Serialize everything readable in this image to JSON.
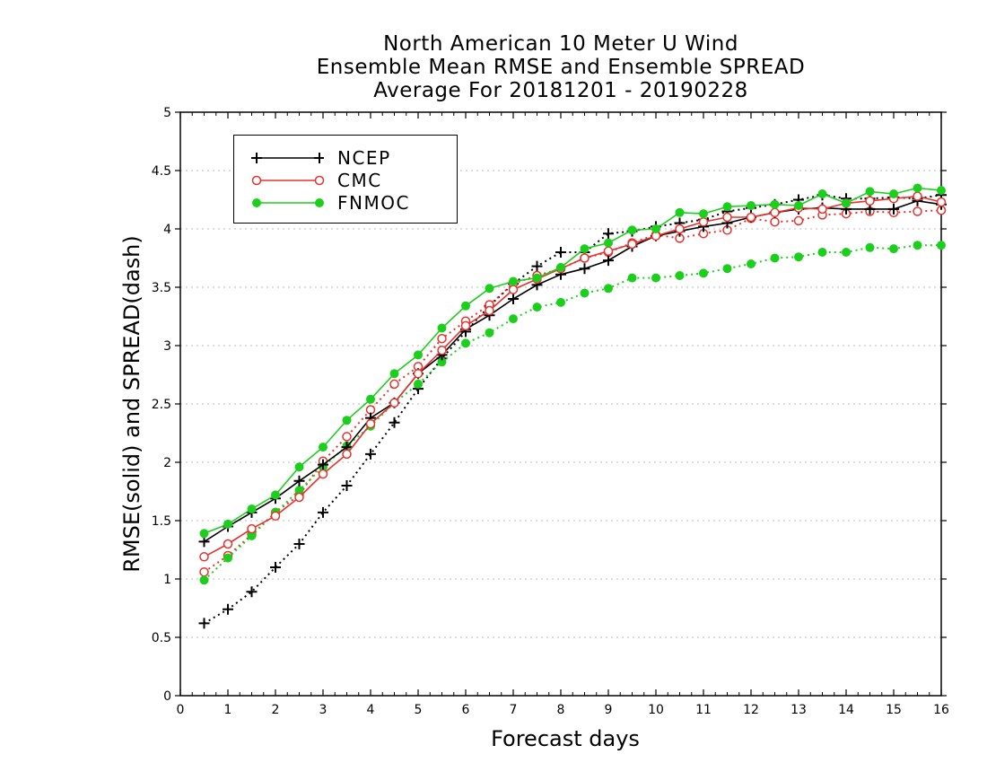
{
  "chart_data": {
    "type": "line",
    "title": [
      "North American 10 Meter U Wind",
      "Ensemble Mean RMSE and Ensemble SPREAD",
      "Average For 20181201 - 20190228"
    ],
    "xlabel": "Forecast days",
    "ylabel": "RMSE(solid) and SPREAD(dash)",
    "xlim": [
      0,
      16
    ],
    "ylim": [
      0,
      5
    ],
    "xticks": [
      "0",
      "1",
      "2",
      "3",
      "4",
      "5",
      "6",
      "7",
      "8",
      "9",
      "10",
      "11",
      "12",
      "13",
      "14",
      "15",
      "16"
    ],
    "yticks": [
      "0",
      "0.5",
      "1",
      "1.5",
      "2",
      "2.5",
      "3",
      "3.5",
      "4",
      "4.5",
      "5"
    ],
    "grid": "horizontal dotted",
    "legend_position": "top-left",
    "x": [
      0.5,
      1,
      1.5,
      2,
      2.5,
      3,
      3.5,
      4,
      4.5,
      5,
      5.5,
      6,
      6.5,
      7,
      7.5,
      8,
      8.5,
      9,
      9.5,
      10,
      10.5,
      11,
      11.5,
      12,
      12.5,
      13,
      13.5,
      14,
      14.5,
      15,
      15.5,
      16
    ],
    "series": [
      {
        "name": "NCEP",
        "metric": "RMSE",
        "style": "solid",
        "marker": "plus",
        "color": "#000000",
        "values": [
          1.32,
          1.45,
          1.57,
          1.69,
          1.84,
          1.98,
          2.13,
          2.38,
          2.51,
          2.76,
          2.92,
          3.14,
          3.26,
          3.4,
          3.52,
          3.61,
          3.66,
          3.73,
          3.85,
          3.94,
          3.98,
          4.02,
          4.05,
          4.1,
          4.14,
          4.17,
          4.18,
          4.17,
          4.17,
          4.17,
          4.24,
          4.21
        ]
      },
      {
        "name": "NCEP",
        "metric": "SPREAD",
        "style": "dash",
        "marker": "plus",
        "color": "#000000",
        "values": [
          0.62,
          0.74,
          0.89,
          1.1,
          1.3,
          1.57,
          1.8,
          2.07,
          2.34,
          2.63,
          2.89,
          3.12,
          3.34,
          3.53,
          3.68,
          3.8,
          3.8,
          3.96,
          3.98,
          4.02,
          4.05,
          4.08,
          4.15,
          4.18,
          4.21,
          4.25,
          4.29,
          4.26,
          4.26,
          4.27,
          4.26,
          4.29
        ]
      },
      {
        "name": "CMC",
        "metric": "RMSE",
        "style": "solid",
        "marker": "open-circle",
        "color": "#e8322e",
        "values": [
          1.19,
          1.3,
          1.43,
          1.54,
          1.7,
          1.9,
          2.07,
          2.33,
          2.51,
          2.76,
          2.96,
          3.17,
          3.3,
          3.48,
          3.57,
          3.66,
          3.75,
          3.81,
          3.87,
          3.94,
          4.0,
          4.06,
          4.1,
          4.1,
          4.14,
          4.18,
          4.17,
          4.22,
          4.24,
          4.26,
          4.28,
          4.23
        ]
      },
      {
        "name": "CMC",
        "metric": "SPREAD",
        "style": "dash",
        "marker": "open-circle",
        "color": "#e8322e",
        "values": [
          1.06,
          1.2,
          1.38,
          1.57,
          1.72,
          2.01,
          2.22,
          2.45,
          2.67,
          2.82,
          3.06,
          3.21,
          3.35,
          3.53,
          3.6,
          3.66,
          3.75,
          3.8,
          3.88,
          3.95,
          3.92,
          3.96,
          3.99,
          4.09,
          4.06,
          4.07,
          4.12,
          4.13,
          4.15,
          4.14,
          4.15,
          4.16
        ]
      },
      {
        "name": "FNMOC",
        "metric": "RMSE",
        "style": "solid",
        "marker": "filled-circle",
        "color": "#1ccf1c",
        "values": [
          1.39,
          1.47,
          1.6,
          1.72,
          1.96,
          2.13,
          2.36,
          2.54,
          2.76,
          2.92,
          3.15,
          3.34,
          3.49,
          3.55,
          3.58,
          3.67,
          3.83,
          3.88,
          3.99,
          4.0,
          4.14,
          4.13,
          4.19,
          4.2,
          4.21,
          4.2,
          4.3,
          4.22,
          4.32,
          4.3,
          4.35,
          4.33
        ]
      },
      {
        "name": "FNMOC",
        "metric": "SPREAD",
        "style": "dash",
        "marker": "filled-circle",
        "color": "#1ccf1c",
        "values": [
          0.99,
          1.18,
          1.37,
          1.57,
          1.76,
          1.96,
          2.14,
          2.31,
          2.51,
          2.67,
          2.86,
          3.02,
          3.11,
          3.23,
          3.33,
          3.37,
          3.45,
          3.49,
          3.58,
          3.58,
          3.6,
          3.62,
          3.66,
          3.7,
          3.75,
          3.76,
          3.8,
          3.8,
          3.84,
          3.83,
          3.86,
          3.86
        ]
      }
    ]
  },
  "legend": {
    "items": [
      {
        "label": "NCEP",
        "marker": "plus",
        "color": "#000000"
      },
      {
        "label": "CMC",
        "marker": "open-circle",
        "color": "#e8322e"
      },
      {
        "label": "FNMOC",
        "marker": "filled-circle",
        "color": "#1ccf1c"
      }
    ]
  }
}
